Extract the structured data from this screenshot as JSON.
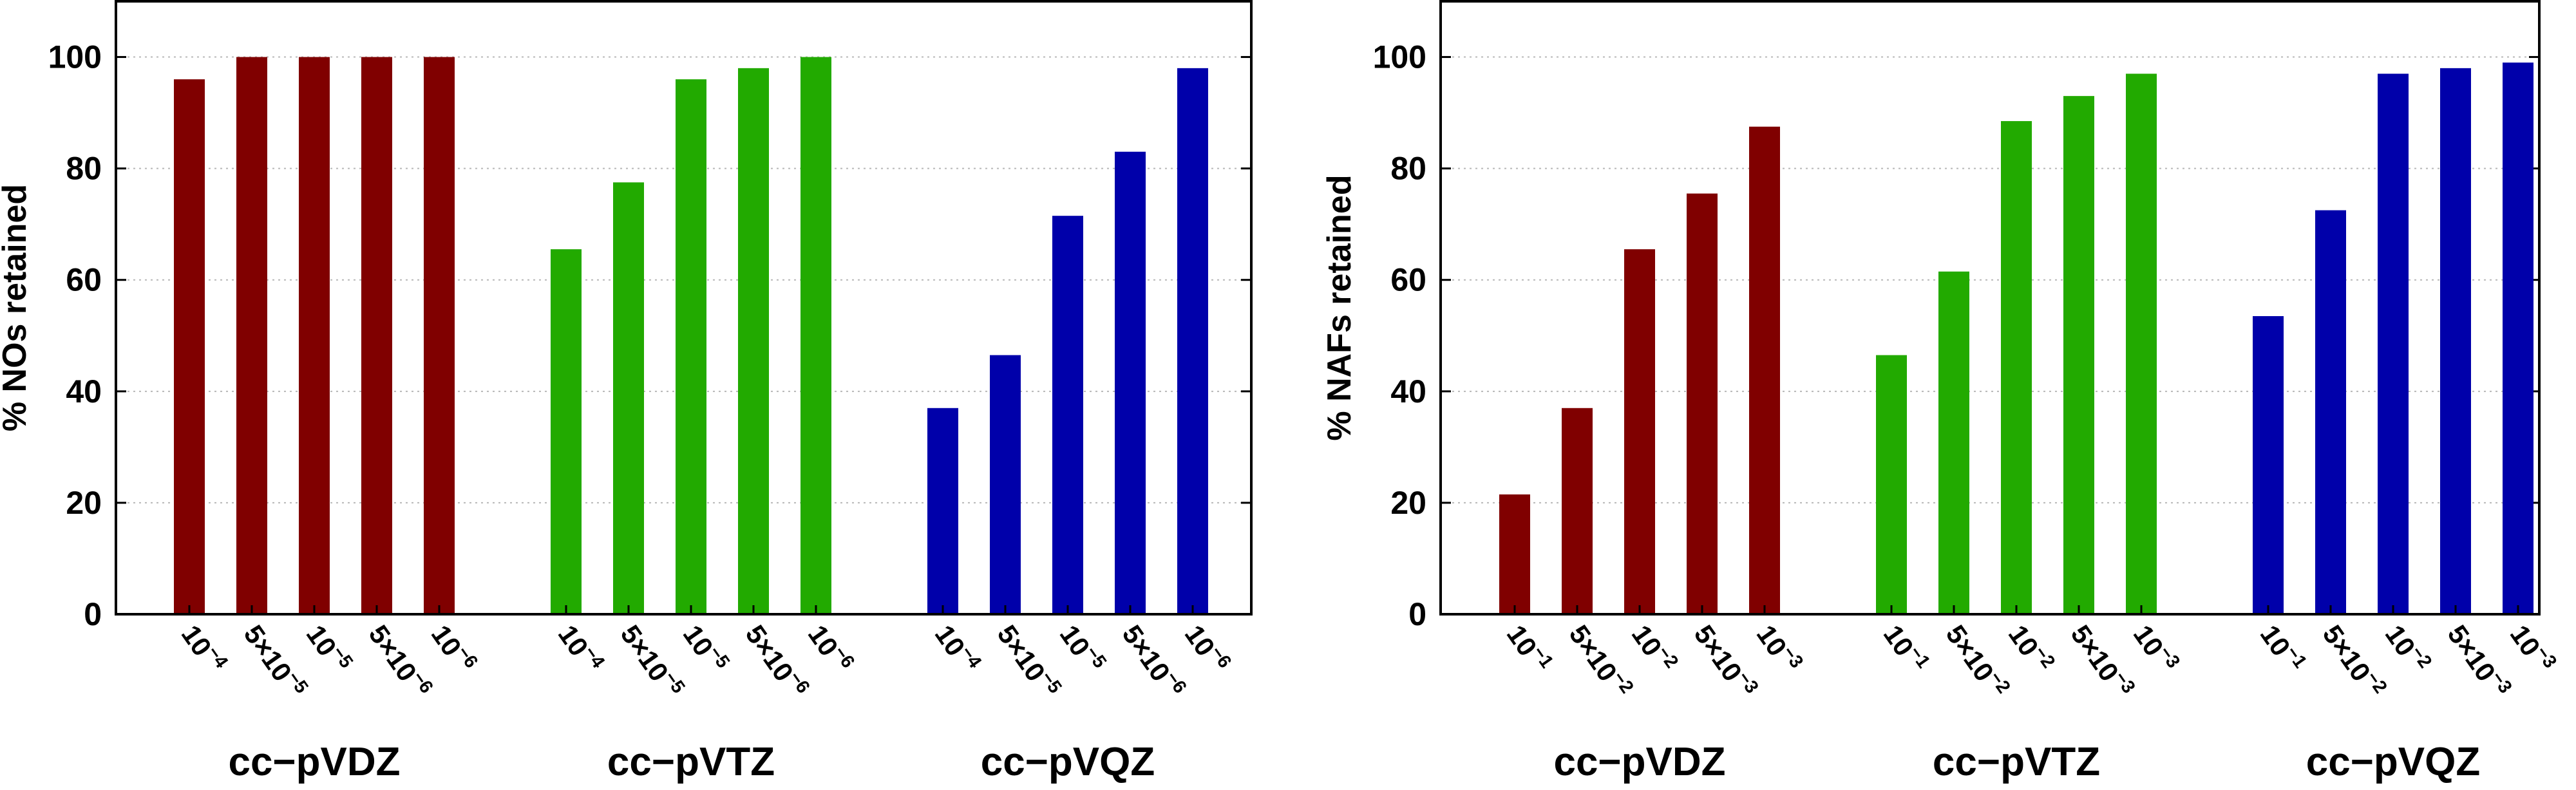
{
  "chart_data": [
    {
      "type": "bar",
      "title": "",
      "ylabel": "% NOs retained",
      "xlabel": "",
      "ylim": [
        0,
        110
      ],
      "yticks": [
        "0",
        "20",
        "40",
        "60",
        "80",
        "100"
      ],
      "grid": "horizontal dotted",
      "groups": [
        {
          "name": "cc−pVDZ",
          "color": "#800000",
          "categories": [
            {
              "base": "10",
              "exp": "−4"
            },
            {
              "base": "5×10",
              "exp": "−5"
            },
            {
              "base": "10",
              "exp": "−5"
            },
            {
              "base": "5×10",
              "exp": "−6"
            },
            {
              "base": "10",
              "exp": "−6"
            }
          ],
          "values": [
            96,
            100,
            100,
            100,
            100
          ]
        },
        {
          "name": "cc−pVTZ",
          "color": "#22aa00",
          "categories": [
            {
              "base": "10",
              "exp": "−4"
            },
            {
              "base": "5×10",
              "exp": "−5"
            },
            {
              "base": "10",
              "exp": "−5"
            },
            {
              "base": "5×10",
              "exp": "−6"
            },
            {
              "base": "10",
              "exp": "−6"
            }
          ],
          "values": [
            65.5,
            77.5,
            96,
            98,
            100
          ]
        },
        {
          "name": "cc−pVQZ",
          "color": "#0000aa",
          "categories": [
            {
              "base": "10",
              "exp": "−4"
            },
            {
              "base": "5×10",
              "exp": "−5"
            },
            {
              "base": "10",
              "exp": "−5"
            },
            {
              "base": "5×10",
              "exp": "−6"
            },
            {
              "base": "10",
              "exp": "−6"
            }
          ],
          "values": [
            37,
            46.5,
            71.5,
            83,
            98
          ]
        }
      ]
    },
    {
      "type": "bar",
      "title": "",
      "ylabel": "% NAFs retained",
      "xlabel": "",
      "ylim": [
        0,
        110
      ],
      "yticks": [
        "0",
        "20",
        "40",
        "60",
        "80",
        "100"
      ],
      "grid": "horizontal dotted",
      "groups": [
        {
          "name": "cc−pVDZ",
          "color": "#800000",
          "categories": [
            {
              "base": "10",
              "exp": "−1"
            },
            {
              "base": "5×10",
              "exp": "−2"
            },
            {
              "base": "10",
              "exp": "−2"
            },
            {
              "base": "5×10",
              "exp": "−3"
            },
            {
              "base": "10",
              "exp": "−3"
            }
          ],
          "values": [
            21.5,
            37,
            65.5,
            75.5,
            87.5
          ]
        },
        {
          "name": "cc−pVTZ",
          "color": "#22aa00",
          "categories": [
            {
              "base": "10",
              "exp": "−1"
            },
            {
              "base": "5×10",
              "exp": "−2"
            },
            {
              "base": "10",
              "exp": "−2"
            },
            {
              "base": "5×10",
              "exp": "−3"
            },
            {
              "base": "10",
              "exp": "−3"
            }
          ],
          "values": [
            46.5,
            61.5,
            88.5,
            93,
            97
          ]
        },
        {
          "name": "cc−pVQZ",
          "color": "#0000aa",
          "categories": [
            {
              "base": "10",
              "exp": "−1"
            },
            {
              "base": "5×10",
              "exp": "−2"
            },
            {
              "base": "10",
              "exp": "−2"
            },
            {
              "base": "5×10",
              "exp": "−3"
            },
            {
              "base": "10",
              "exp": "−3"
            }
          ],
          "values": [
            53.5,
            72.5,
            97,
            98,
            99
          ]
        }
      ]
    }
  ]
}
